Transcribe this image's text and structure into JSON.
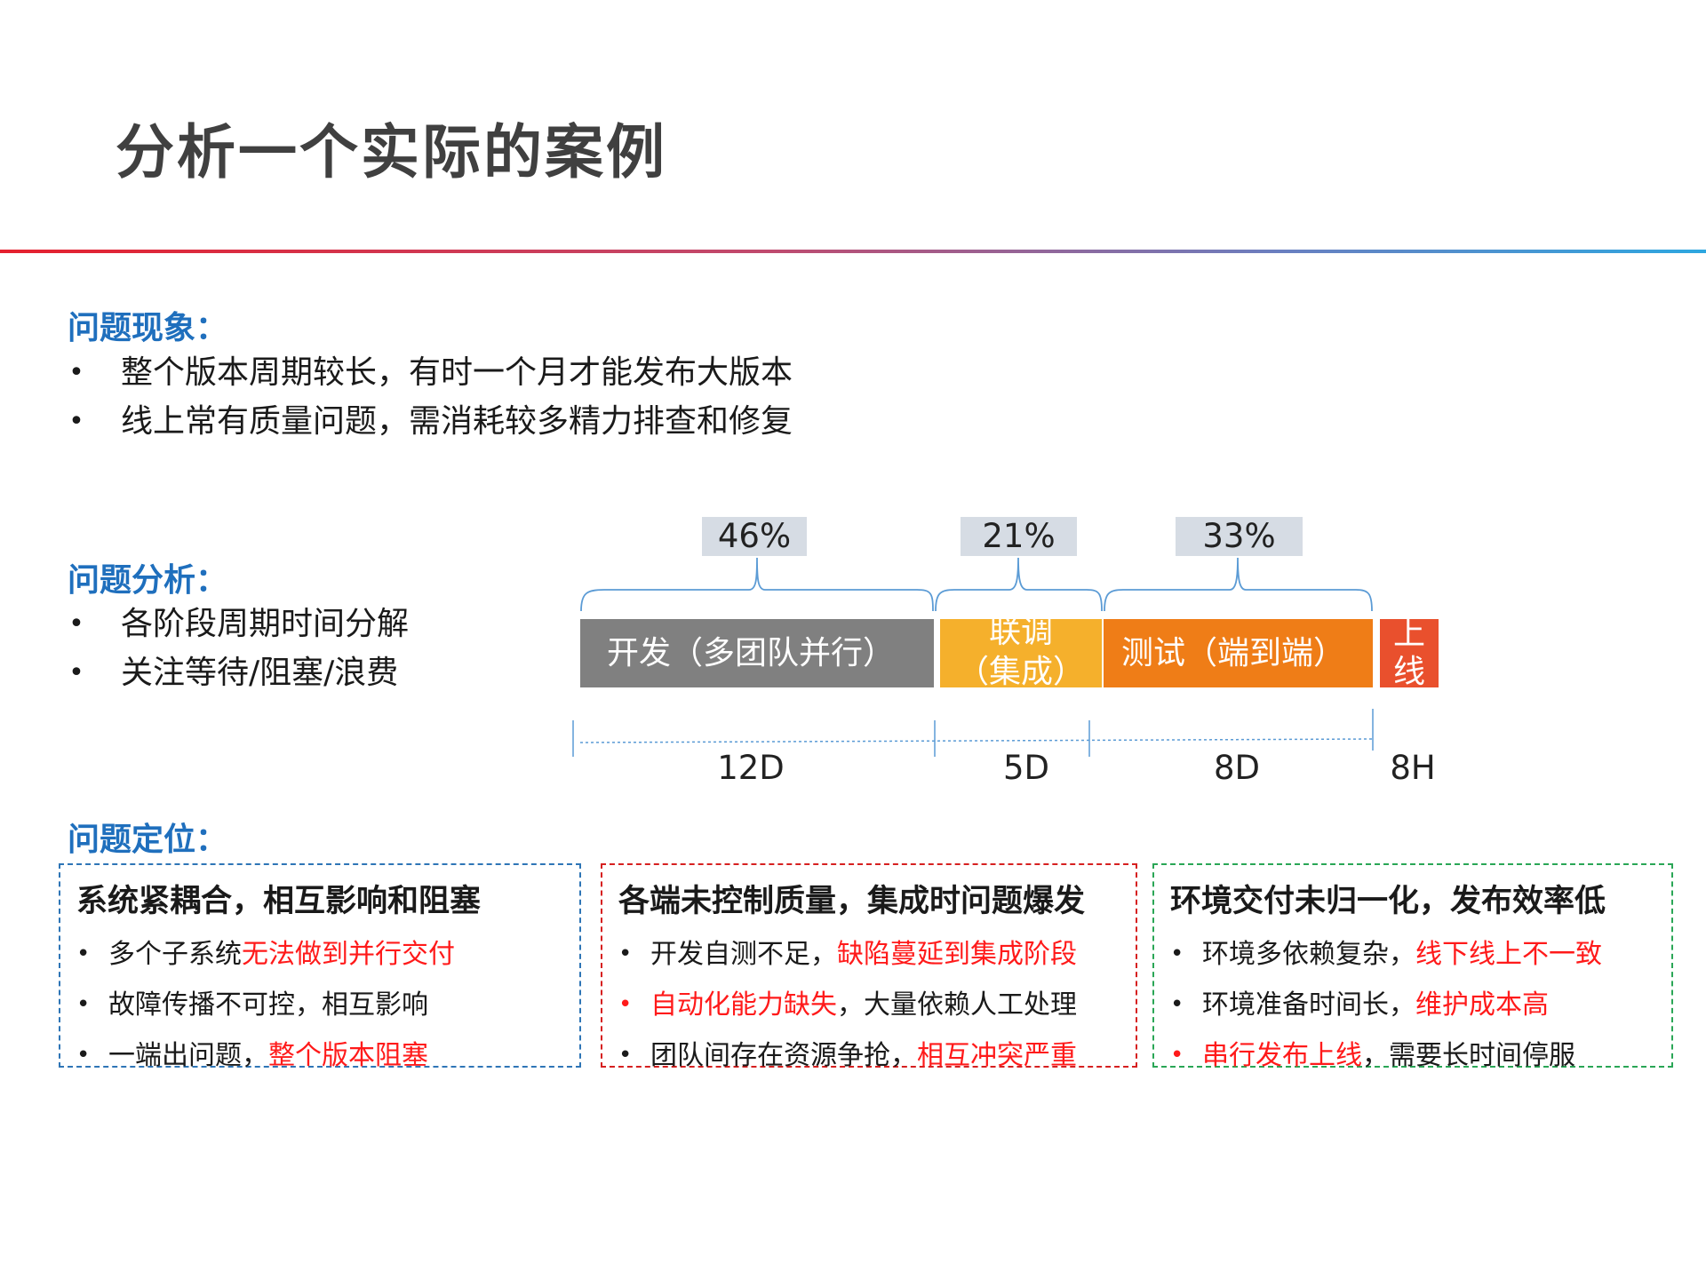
{
  "title": "分析一个实际的案例",
  "colors": {
    "accent_blue": "#1f6fbd",
    "highlight_red": "#ff1a1a",
    "dev_gray": "#808080",
    "integration_yellow": "#f5b02c",
    "test_orange": "#ef7d17",
    "launch_red": "#e9502d"
  },
  "phenomena": {
    "heading": "问题现象：",
    "items": [
      "整个版本周期较长，有时一个月才能发布大版本",
      "线上常有质量问题，需消耗较多精力排查和修复"
    ]
  },
  "analysis": {
    "heading": "问题分析：",
    "items": [
      "各阶段周期时间分解",
      "关注等待/阻塞/浪费"
    ]
  },
  "timeline": {
    "percentages": [
      "46%",
      "21%",
      "33%"
    ],
    "segments": [
      {
        "label": "开发（多团队并行）",
        "duration": "12D"
      },
      {
        "label_line1": "联调",
        "label_line2": "（集成）",
        "duration": "5D"
      },
      {
        "label": "测试（端到端）",
        "duration": "8D"
      },
      {
        "label_line1": "上",
        "label_line2": "线",
        "duration": "8H"
      }
    ]
  },
  "positioning": {
    "heading": "问题定位：",
    "boxes": [
      {
        "title": "系统紧耦合，相互影响和阻塞",
        "border_color": "#2e75b6",
        "items": [
          {
            "text": "多个子系统",
            "highlight": "无法做到并行交付",
            "red_bullet": false
          },
          {
            "text": "故障传播不可控，相互影响",
            "highlight": "",
            "red_bullet": false
          },
          {
            "text": "一端出问题，",
            "highlight": "整个版本阻塞",
            "red_bullet": false
          }
        ]
      },
      {
        "title": "各端未控制质量，集成时问题爆发",
        "border_color": "#d62020",
        "items": [
          {
            "text": "开发自测不足，",
            "highlight": "缺陷蔓延到集成阶段",
            "red_bullet": false
          },
          {
            "lead_highlight": "自动化能力缺失",
            "text": "，大量依赖人工处理",
            "red_bullet": true
          },
          {
            "text": "团队间存在资源争抢，",
            "highlight": "相互冲突严重",
            "red_bullet": false
          }
        ]
      },
      {
        "title": "环境交付未归一化，发布效率低",
        "border_color": "#2aa656",
        "items": [
          {
            "text": "环境多依赖复杂，",
            "highlight": "线下线上不一致",
            "red_bullet": false
          },
          {
            "text": "环境准备时间长，",
            "highlight": "维护成本高",
            "red_bullet": false
          },
          {
            "lead_highlight": "串行发布上线",
            "text": "，需要长时间停服",
            "red_bullet": true
          }
        ]
      }
    ]
  }
}
